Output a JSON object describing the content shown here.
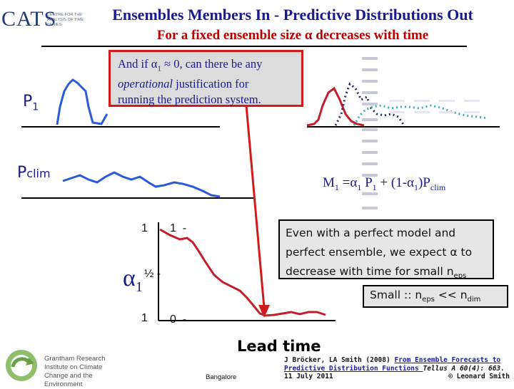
{
  "header": {
    "logo_word": "CATS",
    "logo_subtitle": "CENTRE FOR THE ANALYSIS OF TIME SERIES",
    "title": "Ensembles Members In - Predictive Distributions Out",
    "subtitle": "For a fixed ensemble size α decreases with time"
  },
  "callout": {
    "line1": "And if α",
    "line1_sub": "1",
    "line1_rest": " ≈ 0, can there be any",
    "line2_italic": "operational",
    "line2_rest": " justification for",
    "line3": "running the prediction system."
  },
  "labels": {
    "p1": "P",
    "p1_sub": "1",
    "pclim_main": "P",
    "pclim_sub": "clim",
    "mix_m": "M",
    "mix_m_sub": "1",
    "mix_eq": " =α",
    "mix_a_sub": "1",
    "mix_p": " P",
    "mix_p_sub": "1",
    "mix_rest": "  + (1-α",
    "mix_rest_sub": "1",
    "mix_end": ")P",
    "mix_end_sub": "clim"
  },
  "alpha_axis": {
    "symbol": "α",
    "symbol_sub": "1",
    "tick_top_left": "1",
    "tick_top": "1  -",
    "tick_mid": "½ -",
    "tick_bottom_left": "1",
    "tick_bottom": "0  -"
  },
  "box_even": {
    "line1": "Even with a perfect model and",
    "line2": "perfect ensemble, we  expect α to",
    "line3": "decrease with time for small n",
    "line3_sub": "eps"
  },
  "box_small": {
    "text": "Small :: n",
    "sub1": "eps",
    "mid": " << n",
    "sub2": "dim"
  },
  "lead_time": "Lead time",
  "footer": {
    "grantham": "Grantham Research Institute on Climate Change and the Environment",
    "bangalore": "Bangalore",
    "citation_line1": "J Bröcker, LA Smith (2008) ",
    "citation_link1": "From Ensemble Forecasts to",
    "citation_link2": "Predictive Distribution Functions ",
    "citation_journal": "Tellus A 60(4): 663.",
    "citation_date": "11 July 2011",
    "citation_copy": "© Leonard Smith"
  },
  "colors": {
    "title": "#1a1a8c",
    "subtitle": "#b80000",
    "callout_border": "#d11a1a",
    "curve_blue": "#2a5bd7",
    "curve_red": "#c41e2a",
    "dotted_navy": "#1d2a6e",
    "dotted_teal": "#3aaec0"
  }
}
